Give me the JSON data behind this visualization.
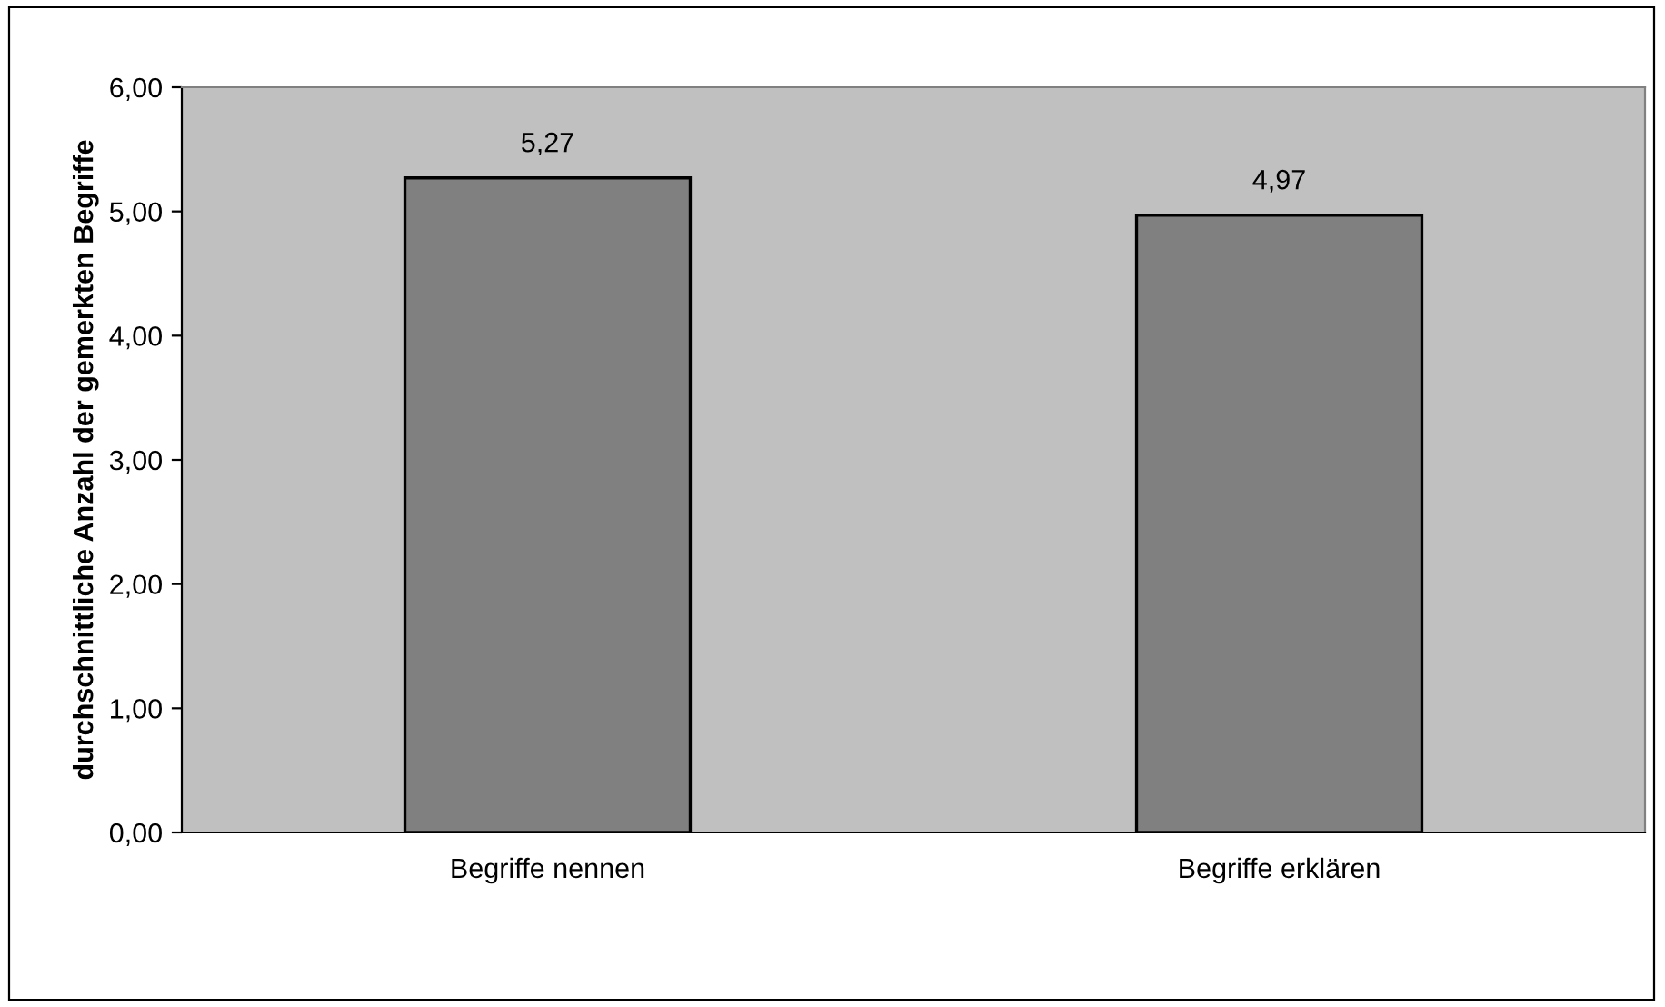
{
  "chart_data": {
    "type": "bar",
    "ylabel": "durchschnittliche Anzahl der gemerkten Begriffe",
    "categories": [
      "Begriffe nennen",
      "Begriffe erklären"
    ],
    "values": [
      5.27,
      4.97
    ],
    "value_labels": [
      "5,27",
      "4,97"
    ],
    "color": "#808080",
    "ylim": [
      0,
      6
    ],
    "yticks": [
      {
        "value": 0,
        "label": "0,00"
      },
      {
        "value": 1,
        "label": "1,00"
      },
      {
        "value": 2,
        "label": "2,00"
      },
      {
        "value": 3,
        "label": "3,00"
      },
      {
        "value": 4,
        "label": "4,00"
      },
      {
        "value": 5,
        "label": "5,00"
      },
      {
        "value": 6,
        "label": "6,00"
      }
    ]
  }
}
